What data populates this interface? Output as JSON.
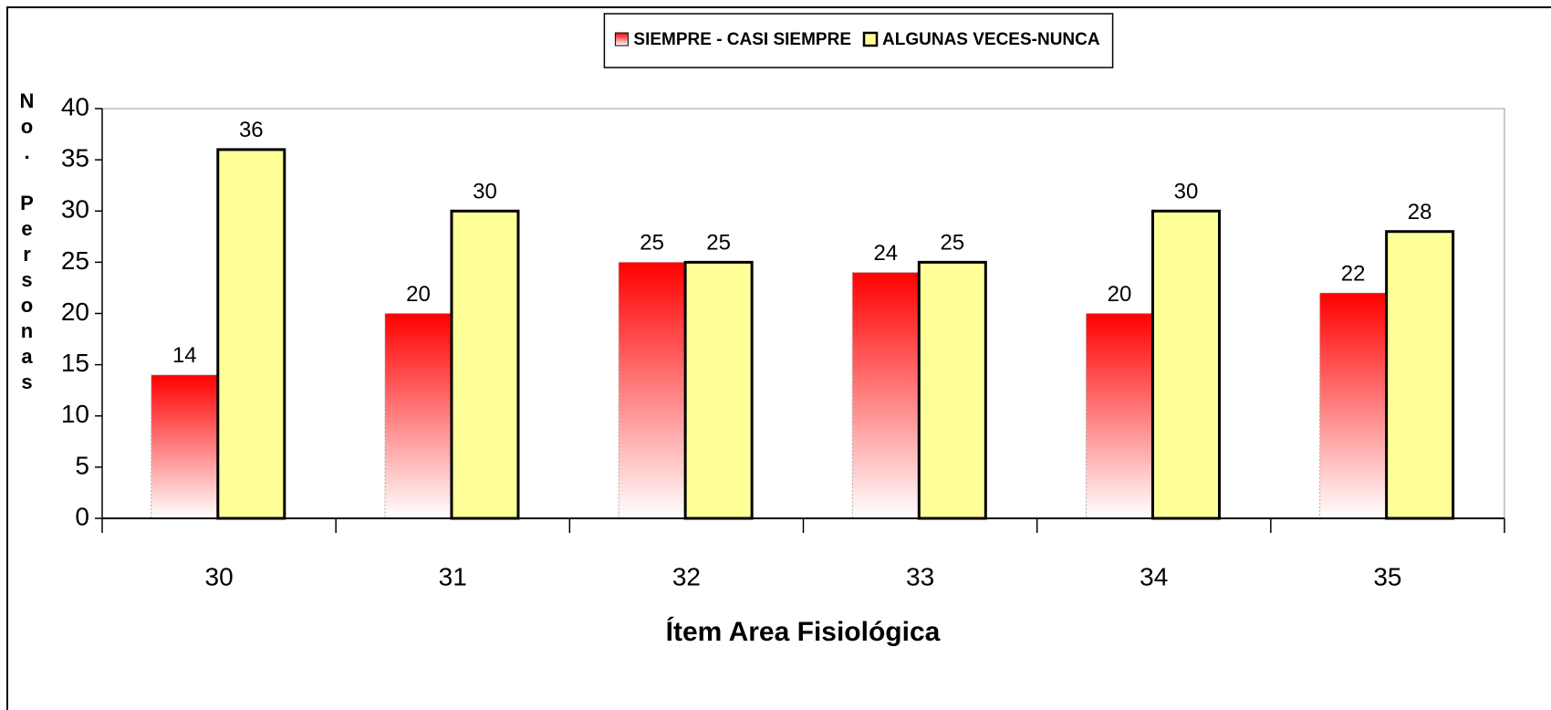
{
  "chart_data": {
    "type": "bar",
    "x_label": "Ítem Area Fisiológica",
    "y_label": "No. Personas",
    "categories": [
      "30",
      "31",
      "32",
      "33",
      "34",
      "35"
    ],
    "series": [
      {
        "name": "SIEMPRE - CASI SIEMPRE",
        "color": "#ff0000",
        "values": [
          14,
          20,
          25,
          24,
          20,
          22
        ]
      },
      {
        "name": "ALGUNAS VECES-NUNCA",
        "color": "#ffff99",
        "values": [
          36,
          30,
          25,
          25,
          30,
          28
        ]
      }
    ],
    "ylim": [
      0,
      40
    ],
    "yticks": [
      0,
      5,
      10,
      15,
      20,
      25,
      30,
      35,
      40
    ],
    "grid": false,
    "legend": "top"
  }
}
